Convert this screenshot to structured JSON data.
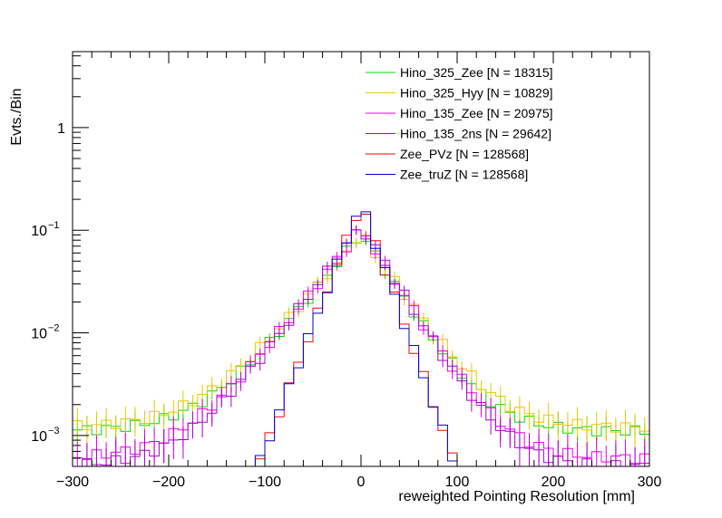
{
  "chart_data": {
    "type": "line",
    "subtype": "step-histogram",
    "title": "",
    "xlabel": "reweighted Pointing Resolution [mm]",
    "ylabel": "Evts./Bin",
    "xlim": [
      -300,
      300
    ],
    "ylim": [
      0.0005,
      5.5
    ],
    "yscale": "log",
    "x_ticks": [
      "−300",
      "−200",
      "−100",
      "0",
      "100",
      "200",
      "300"
    ],
    "x_tick_values": [
      -300,
      -200,
      -100,
      0,
      100,
      200,
      300
    ],
    "y_ticks": [
      {
        "value": 0.001,
        "base": "10",
        "exp": "−3"
      },
      {
        "value": 0.01,
        "base": "10",
        "exp": "−2"
      },
      {
        "value": 0.1,
        "base": "10",
        "exp": "−1"
      },
      {
        "value": 1,
        "base": "1",
        "exp": ""
      }
    ],
    "legend_position": "top-right",
    "bin_width": 10,
    "series": [
      {
        "name": "Hino_325_Zee [N = 18315]",
        "color": "#00dd00",
        "errors": true,
        "peak": 0.092,
        "rise": 0.027,
        "fall": 0.033,
        "floor": 0.0011,
        "rel_err": 0.25
      },
      {
        "name": "Hino_325_Hyy [N = 10829]",
        "color": "#e8c800",
        "errors": true,
        "peak": 0.092,
        "rise": 0.026,
        "fall": 0.031,
        "floor": 0.0012,
        "rel_err": 0.35
      },
      {
        "name": "Hino_135_Zee [N = 20975]",
        "color": "#ee00ee",
        "errors": true,
        "peak": 0.105,
        "rise": 0.028,
        "fall": 0.034,
        "floor": 0.0006,
        "rel_err": 0.3
      },
      {
        "name": "Hino_135_2ns [N = 29642]",
        "color": "#aa00cc",
        "errors": true,
        "peak": 0.11,
        "rise": 0.029,
        "fall": 0.035,
        "floor": 0.0005,
        "rel_err": 0.3
      },
      {
        "name": "Zee_PVz [N = 128568]",
        "color": "#ff0000",
        "errors": false,
        "peak": 0.185,
        "rise": 0.055,
        "fall": 0.06,
        "floor": 0.0,
        "rel_err": 0.05
      },
      {
        "name": "Zee_truZ [N = 128568]",
        "color": "#0000dd",
        "errors": false,
        "peak": 0.185,
        "rise": 0.055,
        "fall": 0.06,
        "floor": 0.0,
        "rel_err": 0.05
      }
    ]
  }
}
